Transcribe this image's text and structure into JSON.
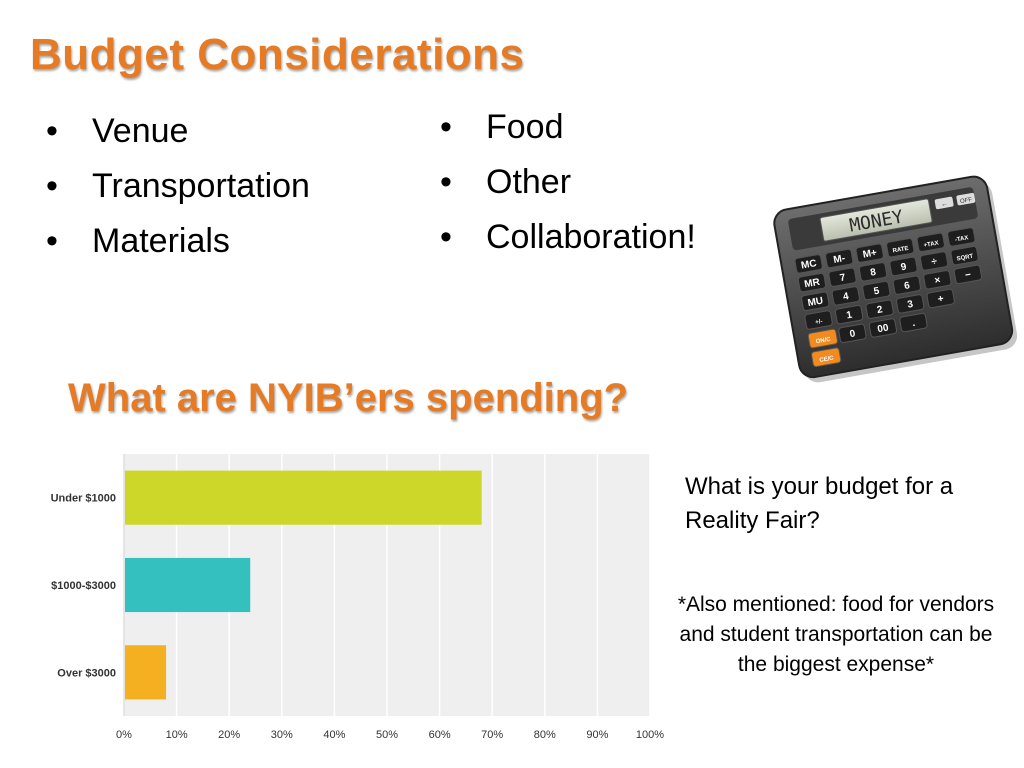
{
  "title": "Budget Considerations",
  "bullets_left": [
    "Venue",
    "Transportation",
    "Materials"
  ],
  "bullets_right": [
    "Food",
    "Other",
    "Collaboration!"
  ],
  "calculator": {
    "display_text": "MONEY",
    "top_keys": [
      "←",
      "OFF"
    ],
    "key_rows": [
      [
        "MC",
        "M-",
        "M+",
        "RATE",
        "+TAX",
        "-TAX"
      ],
      [
        "MR",
        "7",
        "8",
        "9",
        "÷",
        "SQRT"
      ],
      [
        "MU",
        "4",
        "5",
        "6",
        "×",
        "−"
      ],
      [
        "+/-",
        "1",
        "2",
        "3",
        "+"
      ],
      [
        "ON/C",
        "0",
        "00",
        "."
      ],
      [
        "CE/C"
      ]
    ],
    "accent_key_color": "#f28a1e"
  },
  "subtitle": "What are NYIB’ers spending?",
  "chart_data": {
    "type": "bar",
    "orientation": "horizontal",
    "categories": [
      "Under $1000",
      "$1000-$3000",
      "Over $3000"
    ],
    "values": [
      68,
      24,
      8
    ],
    "colors": [
      "#cdd72a",
      "#35c0c0",
      "#f4b020"
    ],
    "xlim": [
      0,
      100
    ],
    "x_ticks": [
      "0%",
      "10%",
      "20%",
      "30%",
      "40%",
      "50%",
      "60%",
      "70%",
      "80%",
      "90%",
      "100%"
    ],
    "grid": true,
    "background": "#efefef"
  },
  "side_question": "What is your budget for a Reality Fair?",
  "side_note": "*Also mentioned: food for vendors and student transportation can be the biggest expense*"
}
